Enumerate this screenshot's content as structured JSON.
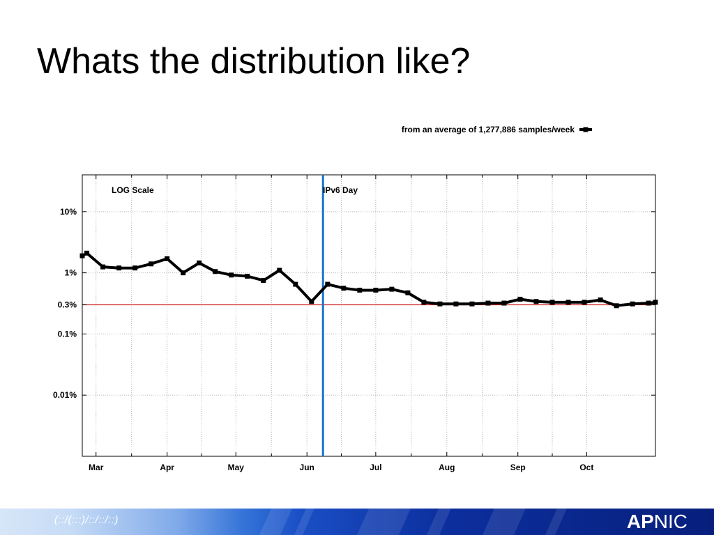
{
  "slide": {
    "title": "Whats the distribution like?"
  },
  "chart_data": {
    "type": "line",
    "y_scale": "log",
    "ylim": [
      0.001,
      40
    ],
    "yticks": [
      {
        "value": 10,
        "label": "10%"
      },
      {
        "value": 1,
        "label": "1%"
      },
      {
        "value": 0.3,
        "label": "0.3%"
      },
      {
        "value": 0.1,
        "label": "0.1%"
      },
      {
        "value": 0.01,
        "label": "0.01%"
      }
    ],
    "x_range": [
      "2011-02-23",
      "2011-10-31"
    ],
    "x_months": [
      {
        "label": "Mar",
        "date": "2011-03-01"
      },
      {
        "label": "Apr",
        "date": "2011-04-01"
      },
      {
        "label": "May",
        "date": "2011-05-01"
      },
      {
        "label": "Jun",
        "date": "2011-06-01"
      },
      {
        "label": "Jul",
        "date": "2011-07-01"
      },
      {
        "label": "Aug",
        "date": "2011-08-01"
      },
      {
        "label": "Sep",
        "date": "2011-09-01"
      },
      {
        "label": "Oct",
        "date": "2011-10-01"
      }
    ],
    "grid": true,
    "legend_position": "top-right",
    "series": [
      {
        "name": "from an average of 1,277,886 samples/week",
        "color": "#000000",
        "points": [
          {
            "x": "2011-02-23",
            "y": 1.9
          },
          {
            "x": "2011-02-25",
            "y": 2.1
          },
          {
            "x": "2011-03-04",
            "y": 1.25
          },
          {
            "x": "2011-03-11",
            "y": 1.2
          },
          {
            "x": "2011-03-18",
            "y": 1.2
          },
          {
            "x": "2011-03-25",
            "y": 1.4
          },
          {
            "x": "2011-04-01",
            "y": 1.7
          },
          {
            "x": "2011-04-08",
            "y": 1.0
          },
          {
            "x": "2011-04-15",
            "y": 1.45
          },
          {
            "x": "2011-04-22",
            "y": 1.05
          },
          {
            "x": "2011-04-29",
            "y": 0.92
          },
          {
            "x": "2011-05-06",
            "y": 0.88
          },
          {
            "x": "2011-05-13",
            "y": 0.75
          },
          {
            "x": "2011-05-20",
            "y": 1.1
          },
          {
            "x": "2011-05-27",
            "y": 0.65
          },
          {
            "x": "2011-06-03",
            "y": 0.34
          },
          {
            "x": "2011-06-10",
            "y": 0.65
          },
          {
            "x": "2011-06-17",
            "y": 0.56
          },
          {
            "x": "2011-06-24",
            "y": 0.52
          },
          {
            "x": "2011-07-01",
            "y": 0.52
          },
          {
            "x": "2011-07-08",
            "y": 0.54
          },
          {
            "x": "2011-07-15",
            "y": 0.47
          },
          {
            "x": "2011-07-22",
            "y": 0.33
          },
          {
            "x": "2011-07-29",
            "y": 0.31
          },
          {
            "x": "2011-08-05",
            "y": 0.31
          },
          {
            "x": "2011-08-12",
            "y": 0.31
          },
          {
            "x": "2011-08-19",
            "y": 0.32
          },
          {
            "x": "2011-08-26",
            "y": 0.32
          },
          {
            "x": "2011-09-02",
            "y": 0.37
          },
          {
            "x": "2011-09-09",
            "y": 0.34
          },
          {
            "x": "2011-09-16",
            "y": 0.33
          },
          {
            "x": "2011-09-23",
            "y": 0.33
          },
          {
            "x": "2011-09-30",
            "y": 0.33
          },
          {
            "x": "2011-10-07",
            "y": 0.36
          },
          {
            "x": "2011-10-14",
            "y": 0.29
          },
          {
            "x": "2011-10-21",
            "y": 0.31
          },
          {
            "x": "2011-10-28",
            "y": 0.32
          },
          {
            "x": "2011-10-31",
            "y": 0.33
          }
        ]
      }
    ],
    "reference_lines": [
      {
        "axis": "y",
        "value": 0.3,
        "color": "#cc2222"
      },
      {
        "axis": "x",
        "value": "2011-06-08",
        "label": "IPv6 Day",
        "color": "#1a73c9"
      }
    ],
    "annotations": [
      {
        "text": "LOG Scale"
      }
    ]
  },
  "footer": {
    "mark": "(::/(:::)/::/::/::)",
    "logo_strong": "AP",
    "logo_rest": "NIC"
  },
  "colors": {
    "title": "#000000",
    "series": "#000000",
    "threshold_line": "#cc2222",
    "event_line": "#1a73c9",
    "footer_dark": "#071f7c"
  }
}
